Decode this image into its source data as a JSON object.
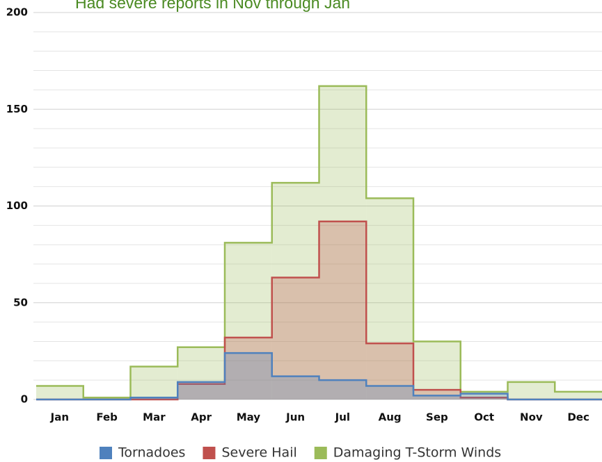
{
  "chart_data": {
    "type": "step-area",
    "annotation": "Had severe reports in Nov through Jan",
    "categories": [
      "Jan",
      "Feb",
      "Mar",
      "Apr",
      "May",
      "Jun",
      "Jul",
      "Aug",
      "Sep",
      "Oct",
      "Nov",
      "Dec"
    ],
    "series": [
      {
        "name": "Tornadoes",
        "color": "#4f81bd",
        "values": [
          0,
          0,
          1,
          9,
          24,
          12,
          10,
          7,
          2,
          3,
          0,
          0
        ]
      },
      {
        "name": "Severe Hail",
        "color": "#c0504d",
        "values": [
          0,
          0,
          0,
          8,
          32,
          63,
          92,
          29,
          5,
          1,
          0,
          0
        ]
      },
      {
        "name": "Damaging T-Storm Winds",
        "color": "#9bbb59",
        "values": [
          7,
          1,
          17,
          27,
          81,
          112,
          162,
          104,
          30,
          4,
          9,
          4
        ]
      }
    ],
    "ylim": [
      0,
      200
    ],
    "yticks": [
      0,
      50,
      100,
      150,
      200
    ],
    "minor_yticks": [
      10,
      20,
      30,
      40,
      60,
      70,
      80,
      90,
      110,
      120,
      130,
      140,
      160,
      170,
      180,
      190
    ],
    "grid": true,
    "legend": "bottom"
  }
}
